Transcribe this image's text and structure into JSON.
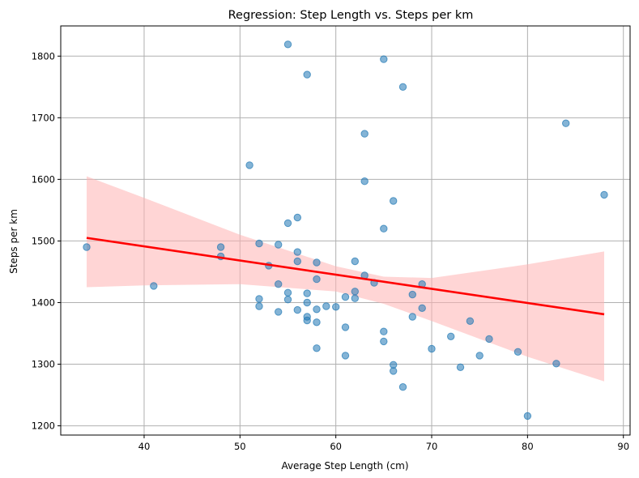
{
  "chart_data": {
    "type": "scatter",
    "title": "Regression: Step Length vs. Steps per km",
    "xlabel": "Average Step Length (cm)",
    "ylabel": "Steps per km",
    "xlim": [
      31.3,
      90.7
    ],
    "ylim": [
      1185,
      1849
    ],
    "xticks": [
      40,
      50,
      60,
      70,
      80,
      90
    ],
    "yticks": [
      1200,
      1300,
      1400,
      1500,
      1600,
      1700,
      1800
    ],
    "grid": true,
    "points": [
      [
        34,
        1490
      ],
      [
        41,
        1427
      ],
      [
        48,
        1490
      ],
      [
        48,
        1475
      ],
      [
        51,
        1623
      ],
      [
        52,
        1496
      ],
      [
        52,
        1406
      ],
      [
        52,
        1394
      ],
      [
        53,
        1460
      ],
      [
        54,
        1494
      ],
      [
        54,
        1430
      ],
      [
        54,
        1385
      ],
      [
        55,
        1819
      ],
      [
        55,
        1529
      ],
      [
        55,
        1416
      ],
      [
        55,
        1405
      ],
      [
        56,
        1538
      ],
      [
        56,
        1482
      ],
      [
        56,
        1467
      ],
      [
        56,
        1388
      ],
      [
        57,
        1770
      ],
      [
        57,
        1415
      ],
      [
        57,
        1400
      ],
      [
        57,
        1377
      ],
      [
        57,
        1371
      ],
      [
        58,
        1465
      ],
      [
        58,
        1438
      ],
      [
        58,
        1389
      ],
      [
        58,
        1368
      ],
      [
        58,
        1326
      ],
      [
        59,
        1394
      ],
      [
        60,
        1393
      ],
      [
        61,
        1409
      ],
      [
        61,
        1360
      ],
      [
        61,
        1314
      ],
      [
        62,
        1467
      ],
      [
        62,
        1418
      ],
      [
        62,
        1407
      ],
      [
        63,
        1674
      ],
      [
        63,
        1597
      ],
      [
        63,
        1444
      ],
      [
        64,
        1432
      ],
      [
        65,
        1795
      ],
      [
        65,
        1520
      ],
      [
        65,
        1353
      ],
      [
        65,
        1337
      ],
      [
        66,
        1565
      ],
      [
        66,
        1299
      ],
      [
        66,
        1289
      ],
      [
        67,
        1750
      ],
      [
        67,
        1263
      ],
      [
        68,
        1413
      ],
      [
        68,
        1377
      ],
      [
        69,
        1430
      ],
      [
        69,
        1391
      ],
      [
        70,
        1325
      ],
      [
        72,
        1345
      ],
      [
        73,
        1295
      ],
      [
        74,
        1370
      ],
      [
        75,
        1314
      ],
      [
        76,
        1341
      ],
      [
        79,
        1320
      ],
      [
        80,
        1216
      ],
      [
        83,
        1301
      ],
      [
        84,
        1691
      ],
      [
        88,
        1575
      ]
    ],
    "regression_line": {
      "x": [
        34,
        88
      ],
      "y": [
        1505,
        1381
      ]
    },
    "confidence_band": {
      "x": [
        34,
        40,
        50,
        60,
        65,
        70,
        80,
        88
      ],
      "upper": [
        1605,
        1570,
        1510,
        1459,
        1442,
        1440,
        1462,
        1483
      ],
      "lower": [
        1425,
        1428,
        1430,
        1418,
        1398,
        1370,
        1312,
        1272
      ]
    },
    "colors": {
      "points": "#1f77b4",
      "regression": "#ff0000",
      "band": "#ffb3b3",
      "grid": "#b0b0b0"
    }
  }
}
